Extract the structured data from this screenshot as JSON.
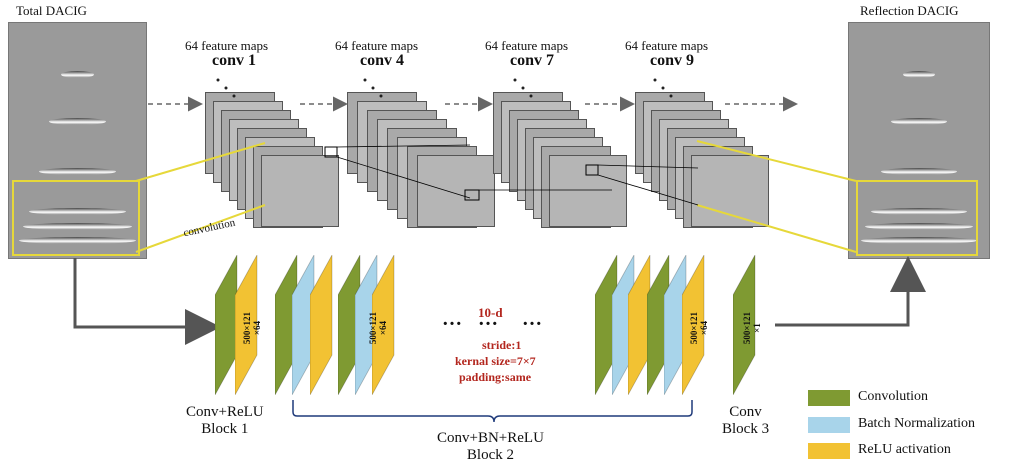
{
  "titles": {
    "total": "Total DACIG",
    "reflection": "Reflection  DACIG"
  },
  "stages": [
    {
      "maps": "64 feature maps",
      "name": "conv 1"
    },
    {
      "maps": "64 feature maps",
      "name": "conv 4"
    },
    {
      "maps": "64 feature maps",
      "name": "conv 7"
    },
    {
      "maps": "64 feature maps",
      "name": "conv 9"
    }
  ],
  "convolution_label": "convolution",
  "blocks": {
    "b1": "Conv+ReLU\nBlock 1",
    "b2": "Conv+BN+ReLU\nBlock 2",
    "b3": "Conv\nBlock 3"
  },
  "dims": {
    "d64": "500×121\n×64",
    "d1": "500×121\n×1"
  },
  "params": {
    "depth": "10-d",
    "stride": "stride:1",
    "kernel": "kernal size=7×7",
    "padding": "padding:same"
  },
  "ellipsis": "…",
  "legend": [
    {
      "label": "Convolution",
      "color": "#7f9a32"
    },
    {
      "label": "Batch Normalization",
      "color": "#a8d4ea"
    },
    {
      "label": "ReLU activation",
      "color": "#f2c233"
    }
  ],
  "colors": {
    "conv": "#7f9a32",
    "bn": "#a8d4ea",
    "relu": "#f2c233",
    "highlight": "#e6d83a"
  }
}
